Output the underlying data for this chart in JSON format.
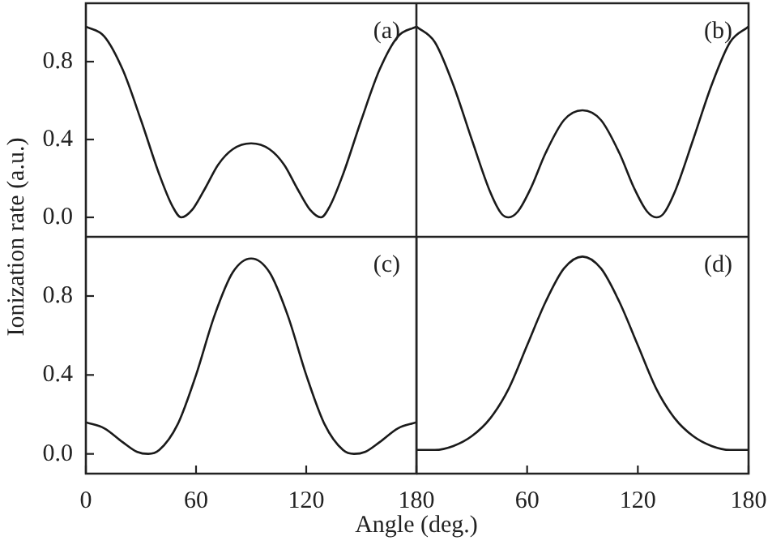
{
  "chart_data": [
    {
      "type": "line",
      "ylabel": "Ionization rate (a.u.)",
      "annotations": [
        "(a)"
      ],
      "x": [
        0,
        10,
        20,
        30,
        40,
        47,
        52,
        58,
        65,
        72,
        80,
        90,
        100,
        108,
        115,
        122,
        128,
        133,
        140,
        150,
        160,
        170,
        180
      ],
      "series": [
        {
          "color": "#1a1a1a",
          "values": [
            0.98,
            0.93,
            0.76,
            0.5,
            0.22,
            0.06,
            0.0,
            0.04,
            0.15,
            0.27,
            0.35,
            0.38,
            0.35,
            0.27,
            0.15,
            0.04,
            0.0,
            0.06,
            0.22,
            0.5,
            0.76,
            0.93,
            0.98
          ]
        }
      ],
      "xlim": [
        0,
        180
      ],
      "ylim": [
        -0.1,
        1.1
      ],
      "yticks": [
        {
          "value": 0,
          "label": "0.0"
        },
        {
          "value": 0.4,
          "label": "0.4"
        },
        {
          "value": 0.8,
          "label": "0.8"
        }
      ],
      "tick_labels": "y",
      "grid": false,
      "legend": false
    },
    {
      "type": "line",
      "annotations": [
        "(b)"
      ],
      "x": [
        0,
        10,
        20,
        30,
        40,
        46,
        50,
        55,
        62,
        70,
        80,
        90,
        100,
        110,
        118,
        125,
        130,
        134,
        140,
        150,
        160,
        170,
        180
      ],
      "series": [
        {
          "color": "#1a1a1a",
          "values": [
            0.98,
            0.9,
            0.68,
            0.4,
            0.13,
            0.02,
            0.0,
            0.03,
            0.15,
            0.33,
            0.5,
            0.55,
            0.5,
            0.33,
            0.15,
            0.03,
            0.0,
            0.02,
            0.13,
            0.4,
            0.68,
            0.9,
            0.98
          ]
        }
      ],
      "xlim": [
        0,
        180
      ],
      "ylim": [
        -0.1,
        1.1
      ],
      "tick_labels": false,
      "grid": false,
      "legend": false
    },
    {
      "type": "line",
      "xlabel": "Angle (deg.)",
      "annotations": [
        "(c)"
      ],
      "x": [
        0,
        10,
        20,
        28,
        34,
        40,
        50,
        60,
        70,
        80,
        90,
        100,
        110,
        120,
        130,
        140,
        146,
        152,
        160,
        170,
        180
      ],
      "series": [
        {
          "color": "#1a1a1a",
          "values": [
            0.16,
            0.13,
            0.06,
            0.01,
            0.0,
            0.02,
            0.15,
            0.4,
            0.7,
            0.92,
            0.99,
            0.92,
            0.7,
            0.4,
            0.15,
            0.02,
            0.0,
            0.01,
            0.06,
            0.13,
            0.16
          ]
        }
      ],
      "xlim": [
        0,
        180
      ],
      "ylim": [
        -0.1,
        1.1
      ],
      "xticks": [
        0,
        60,
        120,
        180
      ],
      "yticks": [
        {
          "value": 0,
          "label": "0.0"
        },
        {
          "value": 0.4,
          "label": "0.4"
        },
        {
          "value": 0.8,
          "label": "0.8"
        }
      ],
      "grid": false,
      "legend": false
    },
    {
      "type": "line",
      "annotations": [
        "(d)"
      ],
      "x": [
        0,
        10,
        20,
        30,
        40,
        50,
        60,
        70,
        80,
        90,
        100,
        110,
        120,
        130,
        140,
        150,
        160,
        170,
        180
      ],
      "series": [
        {
          "color": "#1a1a1a",
          "values": [
            0.02,
            0.02,
            0.04,
            0.09,
            0.18,
            0.33,
            0.55,
            0.77,
            0.94,
            1.0,
            0.94,
            0.77,
            0.55,
            0.33,
            0.18,
            0.09,
            0.04,
            0.02,
            0.02
          ]
        }
      ],
      "xlim": [
        0,
        180
      ],
      "ylim": [
        -0.1,
        1.1
      ],
      "xticks": [
        60,
        120,
        180
      ],
      "tick_labels": "x",
      "grid": false,
      "legend": false
    }
  ]
}
